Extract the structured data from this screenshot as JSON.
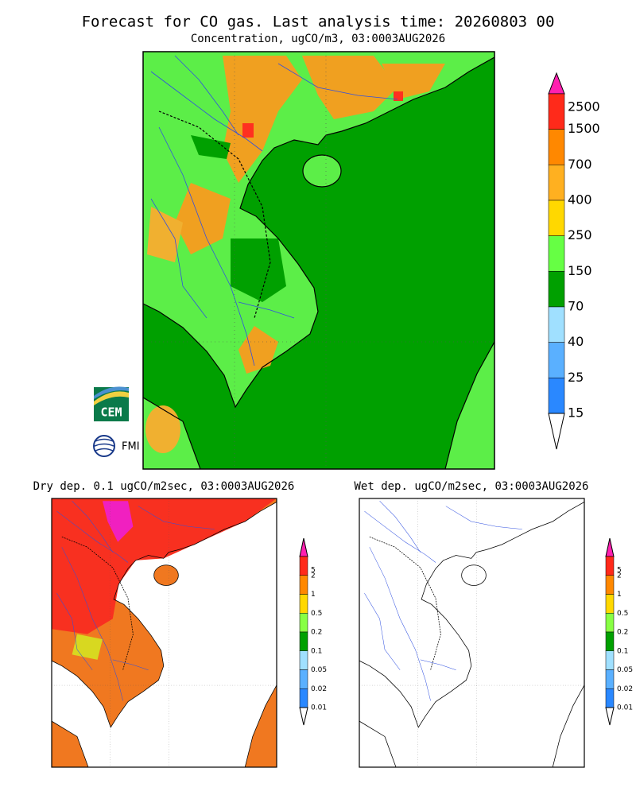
{
  "header": {
    "title": "Forecast for CO gas. Last analysis time: 20260803 00"
  },
  "main_map": {
    "subtitle": "Concentration, ugCO/m3, 03:0003AUG2026",
    "colorbar": [
      "2500",
      "1500",
      "700",
      "400",
      "250",
      "150",
      "70",
      "40",
      "25",
      "15"
    ]
  },
  "dry_map": {
    "subtitle": "Dry dep. 0.1 ugCO/m2sec, 03:0003AUG2026",
    "colorbar": [
      "5",
      "2",
      "1",
      "0.5",
      "0.2",
      "0.1",
      "0.05",
      "0.02",
      "0.01"
    ]
  },
  "wet_map": {
    "subtitle": "Wet dep. ugCO/m2sec, 03:0003AUG2026",
    "colorbar": [
      "5",
      "2",
      "1",
      "0.5",
      "0.2",
      "0.1",
      "0.05",
      "0.02",
      "0.01"
    ]
  },
  "logos": {
    "cem": "CEM",
    "fmi": "FMI"
  }
}
